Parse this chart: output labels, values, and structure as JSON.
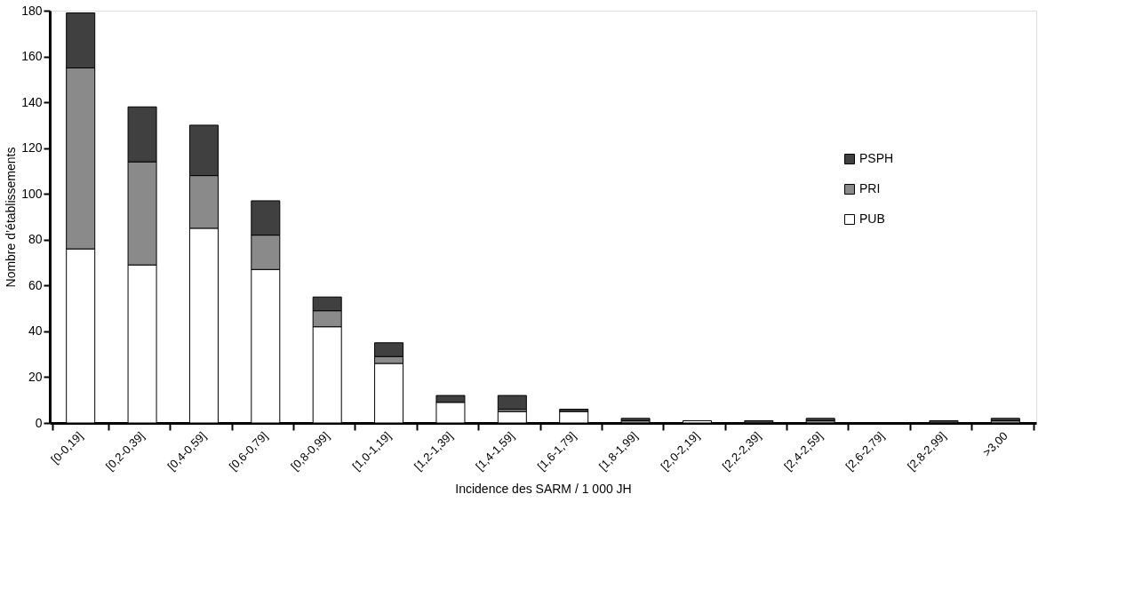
{
  "chart_data": {
    "type": "bar",
    "stacked": true,
    "xlabel": "Incidence des SARM / 1 000 JH",
    "ylabel": "Nombre d’établissements",
    "categories": [
      "[0-0,19]",
      "[0,2-0,39]",
      "[0,4-0,59]",
      "[0,6-0,79]",
      "[0,8-0,99]",
      "[1,0-1,19]",
      "[1,2-1,39]",
      "[1,4-1,59]",
      "[1,6-1,79]",
      "[1,8-1,99]",
      "[2,0-2,19]",
      "[2,2-2,39]",
      "[2,4-2,59]",
      "[2,6-2,79]",
      "[2,8-2,99]",
      ">3,00"
    ],
    "series": [
      {
        "name": "PUB",
        "color": "#ffffff",
        "values": [
          76,
          69,
          85,
          67,
          42,
          26,
          9,
          5,
          5,
          0,
          1,
          0,
          0,
          0,
          0,
          0
        ]
      },
      {
        "name": "PRI",
        "color": "#8a8a8a",
        "values": [
          79,
          45,
          23,
          15,
          7,
          3,
          0,
          1,
          0,
          1,
          0,
          0,
          1,
          0,
          0,
          1
        ]
      },
      {
        "name": "PSPH",
        "color": "#404040",
        "values": [
          24,
          24,
          22,
          15,
          6,
          6,
          3,
          6,
          1,
          1,
          0,
          1,
          1,
          0,
          1,
          1
        ]
      }
    ],
    "ylim": [
      0,
      180
    ],
    "yticks": [
      0,
      20,
      40,
      60,
      80,
      100,
      120,
      140,
      160,
      180
    ],
    "grid": false,
    "legend": "top right"
  }
}
